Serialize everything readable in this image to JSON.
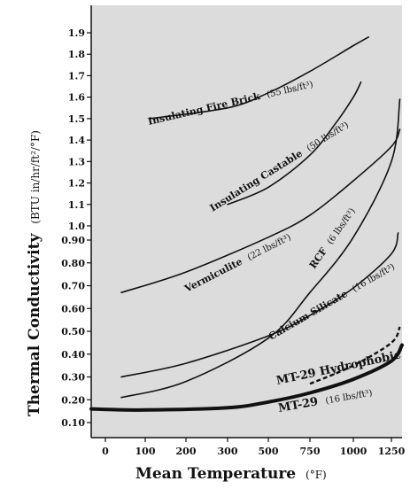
{
  "chart_data": {
    "type": "line",
    "xlabel": "Mean Temperature",
    "xunit": "(°F)",
    "ylabel": "Thermal Conductivity",
    "yunit": "(BTU in/hr/ft²/°F)",
    "xlim": [
      -40,
      1440
    ],
    "ylim": [
      0.05,
      1.95
    ],
    "y_scale": "categorical-ticks",
    "x_ticks": [
      "0",
      "100",
      "200",
      "300",
      "500",
      "750",
      "1000",
      "1250"
    ],
    "x_tick_values": [
      0,
      100,
      200,
      300,
      500,
      750,
      1000,
      1250
    ],
    "y_ticks": [
      "0.10",
      "0.20",
      "0.30",
      "0.40",
      "0.50",
      "0.60",
      "0.70",
      "0.80",
      "0.90",
      "1.0",
      "1.1",
      "1.2",
      "1.3",
      "1.4",
      "1.5",
      "1.6",
      "1.7",
      "1.8",
      "1.9"
    ],
    "y_tick_values": [
      0.1,
      0.2,
      0.3,
      0.4,
      0.5,
      0.6,
      0.7,
      0.8,
      0.9,
      1.0,
      1.1,
      1.2,
      1.3,
      1.4,
      1.5,
      1.6,
      1.7,
      1.8,
      1.9
    ],
    "background": "#dcdcdc",
    "series": [
      {
        "name": "Insulating Fire Brick",
        "label_detail": "(55 lbs/ft³)",
        "style": "solid",
        "x": [
          110,
          300,
          500,
          750,
          1000,
          1100
        ],
        "y": [
          1.5,
          1.55,
          1.62,
          1.72,
          1.84,
          1.88
        ]
      },
      {
        "name": "Insulating Castable",
        "label_detail": "(50 lbs/ft³)",
        "style": "solid",
        "x": [
          300,
          500,
          750,
          900,
          1000,
          1050
        ],
        "y": [
          1.1,
          1.18,
          1.33,
          1.48,
          1.6,
          1.67
        ]
      },
      {
        "name": "Vermiculite",
        "label_detail": "(22 lbs/ft³)",
        "style": "solid",
        "x": [
          40,
          200,
          500,
          750,
          1000,
          1250,
          1400
        ],
        "y": [
          0.67,
          0.76,
          0.92,
          1.05,
          1.21,
          1.37,
          1.45
        ]
      },
      {
        "name": "RCF",
        "label_detail": "(6 lbs/ft³)",
        "style": "solid",
        "x": [
          40,
          200,
          500,
          750,
          1000,
          1250,
          1400
        ],
        "y": [
          0.21,
          0.28,
          0.47,
          0.67,
          0.92,
          1.3,
          1.59
        ]
      },
      {
        "name": "Calcium Silicate",
        "label_detail": "(16 lbs/ft³)",
        "style": "solid",
        "x": [
          40,
          200,
          500,
          750,
          1000,
          1250,
          1370
        ],
        "y": [
          0.3,
          0.36,
          0.48,
          0.57,
          0.69,
          0.84,
          0.95
        ]
      },
      {
        "name": "MT-29 Hydrophobic",
        "label_detail": "",
        "style": "dashed",
        "x": [
          750,
          1000,
          1250,
          1400
        ],
        "y": [
          0.27,
          0.35,
          0.45,
          0.52
        ]
      },
      {
        "name": "MT-29",
        "label_detail": "(16 lbs/ft³)",
        "style": "solid-thick",
        "x": [
          -40,
          100,
          300,
          500,
          750,
          1000,
          1250,
          1440
        ],
        "y": [
          0.16,
          0.155,
          0.165,
          0.19,
          0.23,
          0.29,
          0.37,
          0.44
        ]
      }
    ]
  }
}
